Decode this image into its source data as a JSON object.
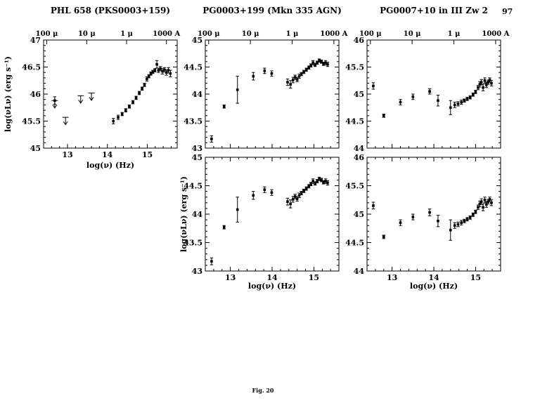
{
  "page": {
    "number": "97",
    "caption": "Fig. 20"
  },
  "chart_data": [
    {
      "id": "phl658",
      "type": "scatter",
      "title": "PHL 658 (PKS0003+159)",
      "xlabel": "log(ν) (Hz)",
      "ylabel": "log(νLν) (erg s⁻¹)",
      "xlim": [
        12.4,
        15.75
      ],
      "ylim": [
        45,
        47
      ],
      "xticks": [
        13,
        14,
        15
      ],
      "yticks": [
        45,
        45.5,
        46,
        46.5,
        47
      ],
      "grid": false,
      "top_ticks": [
        {
          "x": 12.48,
          "label": "100 μ"
        },
        {
          "x": 13.48,
          "label": "10 μ"
        },
        {
          "x": 14.48,
          "label": "1 μ"
        },
        {
          "x": 15.48,
          "label": "1000 A"
        }
      ],
      "upper_limits": [
        [
          12.68,
          45.88
        ],
        [
          12.95,
          45.57
        ],
        [
          13.33,
          45.97
        ],
        [
          13.6,
          46.02
        ]
      ],
      "points": [
        [
          12.68,
          45.88,
          0.07
        ],
        [
          14.15,
          45.5,
          0.05
        ],
        [
          14.27,
          45.57,
          0.04
        ],
        [
          14.37,
          45.63,
          0.03
        ],
        [
          14.46,
          45.7,
          0.03
        ],
        [
          14.55,
          45.77,
          0.03
        ],
        [
          14.64,
          45.85,
          0.03
        ],
        [
          14.72,
          45.93,
          0.03
        ],
        [
          14.8,
          46.02,
          0.03
        ],
        [
          14.87,
          46.1,
          0.03
        ],
        [
          14.93,
          46.17,
          0.03
        ],
        [
          14.99,
          46.28,
          0.04
        ],
        [
          15.04,
          46.33,
          0.03
        ],
        [
          15.09,
          46.38,
          0.03
        ],
        [
          15.14,
          46.41,
          0.03
        ],
        [
          15.19,
          46.44,
          0.03
        ],
        [
          15.24,
          46.55,
          0.07
        ],
        [
          15.28,
          46.44,
          0.04
        ],
        [
          15.33,
          46.47,
          0.04
        ],
        [
          15.38,
          46.42,
          0.05
        ],
        [
          15.43,
          46.45,
          0.04
        ],
        [
          15.48,
          46.4,
          0.05
        ],
        [
          15.53,
          46.44,
          0.05
        ],
        [
          15.58,
          46.38,
          0.06
        ]
      ]
    },
    {
      "id": "pg0003-top",
      "type": "scatter",
      "title": "PG0003+199 (Mkn 335 AGN)",
      "xlabel": "log(ν) (Hz)",
      "ylabel": "log(νLν) (erg s⁻¹)",
      "xlim": [
        12.4,
        15.6
      ],
      "ylim": [
        43,
        45
      ],
      "xticks": [
        13,
        14,
        15
      ],
      "yticks": [
        43,
        43.5,
        44,
        44.5,
        45
      ],
      "grid": false,
      "top_ticks": [
        {
          "x": 12.48,
          "label": "100 μ"
        },
        {
          "x": 13.48,
          "label": "10 μ"
        },
        {
          "x": 14.48,
          "label": "1 μ"
        },
        {
          "x": 15.48,
          "label": "1000 A"
        }
      ],
      "upper_limits": [],
      "points": [
        [
          12.55,
          43.17,
          0.06
        ],
        [
          12.85,
          43.77,
          0.03
        ],
        [
          13.17,
          44.08,
          0.25
        ],
        [
          13.55,
          44.33,
          0.07
        ],
        [
          13.82,
          44.43,
          0.05
        ],
        [
          13.99,
          44.38,
          0.05
        ],
        [
          14.37,
          44.22,
          0.06
        ],
        [
          14.44,
          44.18,
          0.07
        ],
        [
          14.5,
          44.26,
          0.05
        ],
        [
          14.55,
          44.31,
          0.04
        ],
        [
          14.6,
          44.27,
          0.04
        ],
        [
          14.65,
          44.33,
          0.04
        ],
        [
          14.7,
          44.37,
          0.03
        ],
        [
          14.76,
          44.41,
          0.03
        ],
        [
          14.82,
          44.45,
          0.03
        ],
        [
          14.88,
          44.49,
          0.03
        ],
        [
          14.93,
          44.53,
          0.03
        ],
        [
          14.98,
          44.58,
          0.04
        ],
        [
          15.03,
          44.54,
          0.03
        ],
        [
          15.08,
          44.58,
          0.03
        ],
        [
          15.13,
          44.62,
          0.03
        ],
        [
          15.18,
          44.6,
          0.03
        ],
        [
          15.23,
          44.56,
          0.03
        ],
        [
          15.28,
          44.58,
          0.04
        ],
        [
          15.33,
          44.55,
          0.04
        ]
      ]
    },
    {
      "id": "pg0007-top",
      "type": "scatter",
      "title": "PG0007+10 in III Zw 2",
      "xlabel": "log(ν) (Hz)",
      "ylabel": "log(νLν) (erg s⁻¹)",
      "xlim": [
        12.4,
        15.6
      ],
      "ylim": [
        44,
        46
      ],
      "xticks": [
        13,
        14,
        15
      ],
      "yticks": [
        44,
        44.5,
        45,
        45.5,
        46
      ],
      "grid": false,
      "top_ticks": [
        {
          "x": 12.48,
          "label": "100 μ"
        },
        {
          "x": 13.48,
          "label": "10 μ"
        },
        {
          "x": 14.48,
          "label": "1 μ"
        },
        {
          "x": 15.48,
          "label": "1000 A"
        }
      ],
      "upper_limits": [],
      "points": [
        [
          12.55,
          45.15,
          0.06
        ],
        [
          12.8,
          44.6,
          0.03
        ],
        [
          13.2,
          44.85,
          0.05
        ],
        [
          13.5,
          44.95,
          0.05
        ],
        [
          13.9,
          45.05,
          0.05
        ],
        [
          14.1,
          44.88,
          0.1
        ],
        [
          14.4,
          44.75,
          0.13
        ],
        [
          14.5,
          44.8,
          0.05
        ],
        [
          14.58,
          44.82,
          0.04
        ],
        [
          14.66,
          44.85,
          0.04
        ],
        [
          14.73,
          44.88,
          0.03
        ],
        [
          14.8,
          44.91,
          0.03
        ],
        [
          14.87,
          44.94,
          0.03
        ],
        [
          14.94,
          44.99,
          0.03
        ],
        [
          15.0,
          45.04,
          0.03
        ],
        [
          15.06,
          45.12,
          0.04
        ],
        [
          15.1,
          45.18,
          0.05
        ],
        [
          15.14,
          45.22,
          0.05
        ],
        [
          15.18,
          45.12,
          0.06
        ],
        [
          15.22,
          45.25,
          0.05
        ],
        [
          15.26,
          45.17,
          0.05
        ],
        [
          15.3,
          45.22,
          0.04
        ],
        [
          15.34,
          45.26,
          0.04
        ],
        [
          15.38,
          45.2,
          0.05
        ]
      ]
    },
    {
      "id": "pg0003-bottom",
      "type": "scatter",
      "title": "",
      "xlabel": "log(ν) (Hz)",
      "ylabel": "log(νLν) (erg s⁻¹)",
      "xlim": [
        12.4,
        15.6
      ],
      "ylim": [
        43,
        45
      ],
      "xticks": [
        13,
        14,
        15
      ],
      "yticks": [
        43,
        43.5,
        44,
        44.5,
        45
      ],
      "grid": false,
      "top_ticks": [],
      "upper_limits": [],
      "points": [
        [
          12.55,
          43.17,
          0.06
        ],
        [
          12.85,
          43.77,
          0.03
        ],
        [
          13.17,
          44.08,
          0.22
        ],
        [
          13.55,
          44.33,
          0.07
        ],
        [
          13.82,
          44.43,
          0.05
        ],
        [
          13.99,
          44.38,
          0.05
        ],
        [
          14.37,
          44.22,
          0.06
        ],
        [
          14.44,
          44.18,
          0.07
        ],
        [
          14.5,
          44.26,
          0.05
        ],
        [
          14.55,
          44.31,
          0.04
        ],
        [
          14.6,
          44.27,
          0.04
        ],
        [
          14.65,
          44.33,
          0.04
        ],
        [
          14.7,
          44.37,
          0.03
        ],
        [
          14.76,
          44.41,
          0.03
        ],
        [
          14.82,
          44.45,
          0.03
        ],
        [
          14.88,
          44.49,
          0.03
        ],
        [
          14.93,
          44.53,
          0.03
        ],
        [
          14.98,
          44.58,
          0.04
        ],
        [
          15.03,
          44.54,
          0.03
        ],
        [
          15.08,
          44.58,
          0.03
        ],
        [
          15.13,
          44.62,
          0.03
        ],
        [
          15.18,
          44.6,
          0.03
        ],
        [
          15.23,
          44.56,
          0.03
        ],
        [
          15.28,
          44.58,
          0.04
        ],
        [
          15.33,
          44.55,
          0.04
        ]
      ]
    },
    {
      "id": "pg0007-bottom",
      "type": "scatter",
      "title": "",
      "xlabel": "log(ν) (Hz)",
      "ylabel": "log(νLν) (erg s⁻¹)",
      "xlim": [
        12.4,
        15.6
      ],
      "ylim": [
        44,
        46
      ],
      "xticks": [
        13,
        14,
        15
      ],
      "yticks": [
        44,
        44.5,
        45,
        45.5,
        46
      ],
      "grid": false,
      "top_ticks": [],
      "upper_limits": [],
      "points": [
        [
          12.55,
          45.15,
          0.06
        ],
        [
          12.8,
          44.6,
          0.03
        ],
        [
          13.2,
          44.85,
          0.05
        ],
        [
          13.5,
          44.95,
          0.05
        ],
        [
          13.9,
          45.03,
          0.06
        ],
        [
          14.1,
          44.88,
          0.1
        ],
        [
          14.4,
          44.72,
          0.18
        ],
        [
          14.5,
          44.8,
          0.05
        ],
        [
          14.58,
          44.82,
          0.04
        ],
        [
          14.66,
          44.85,
          0.04
        ],
        [
          14.73,
          44.88,
          0.03
        ],
        [
          14.8,
          44.91,
          0.03
        ],
        [
          14.87,
          44.94,
          0.03
        ],
        [
          14.94,
          44.99,
          0.03
        ],
        [
          15.0,
          45.04,
          0.03
        ],
        [
          15.06,
          45.12,
          0.04
        ],
        [
          15.1,
          45.18,
          0.05
        ],
        [
          15.14,
          45.22,
          0.05
        ],
        [
          15.18,
          45.12,
          0.06
        ],
        [
          15.22,
          45.25,
          0.05
        ],
        [
          15.26,
          45.17,
          0.05
        ],
        [
          15.3,
          45.22,
          0.04
        ],
        [
          15.34,
          45.26,
          0.04
        ],
        [
          15.38,
          45.2,
          0.05
        ]
      ]
    }
  ]
}
